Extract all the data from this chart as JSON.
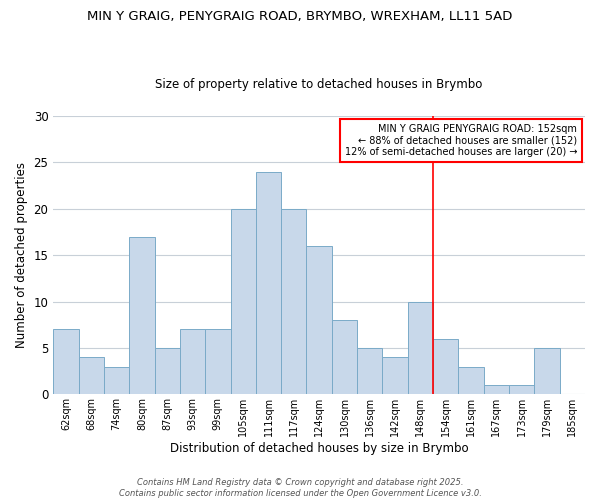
{
  "title": "MIN Y GRAIG, PENYGRAIG ROAD, BRYMBO, WREXHAM, LL11 5AD",
  "subtitle": "Size of property relative to detached houses in Brymbo",
  "xlabel": "Distribution of detached houses by size in Brymbo",
  "ylabel": "Number of detached properties",
  "bar_color": "#c8d8ea",
  "bar_edge_color": "#7aaac8",
  "background_color": "#ffffff",
  "grid_color": "#c8d0d8",
  "categories": [
    "62sqm",
    "68sqm",
    "74sqm",
    "80sqm",
    "87sqm",
    "93sqm",
    "99sqm",
    "105sqm",
    "111sqm",
    "117sqm",
    "124sqm",
    "130sqm",
    "136sqm",
    "142sqm",
    "148sqm",
    "154sqm",
    "161sqm",
    "167sqm",
    "173sqm",
    "179sqm",
    "185sqm"
  ],
  "values": [
    7,
    4,
    3,
    17,
    5,
    7,
    7,
    20,
    24,
    20,
    16,
    8,
    5,
    4,
    10,
    6,
    3,
    1,
    1,
    5,
    0
  ],
  "ylim": [
    0,
    30
  ],
  "yticks": [
    0,
    5,
    10,
    15,
    20,
    25,
    30
  ],
  "marker_bin_index": 14,
  "marker_label_line1": "MIN Y GRAIG PENYGRAIG ROAD: 152sqm",
  "marker_label_line2": "← 88% of detached houses are smaller (152)",
  "marker_label_line3": "12% of semi-detached houses are larger (20) →",
  "footnote1": "Contains HM Land Registry data © Crown copyright and database right 2025.",
  "footnote2": "Contains public sector information licensed under the Open Government Licence v3.0."
}
